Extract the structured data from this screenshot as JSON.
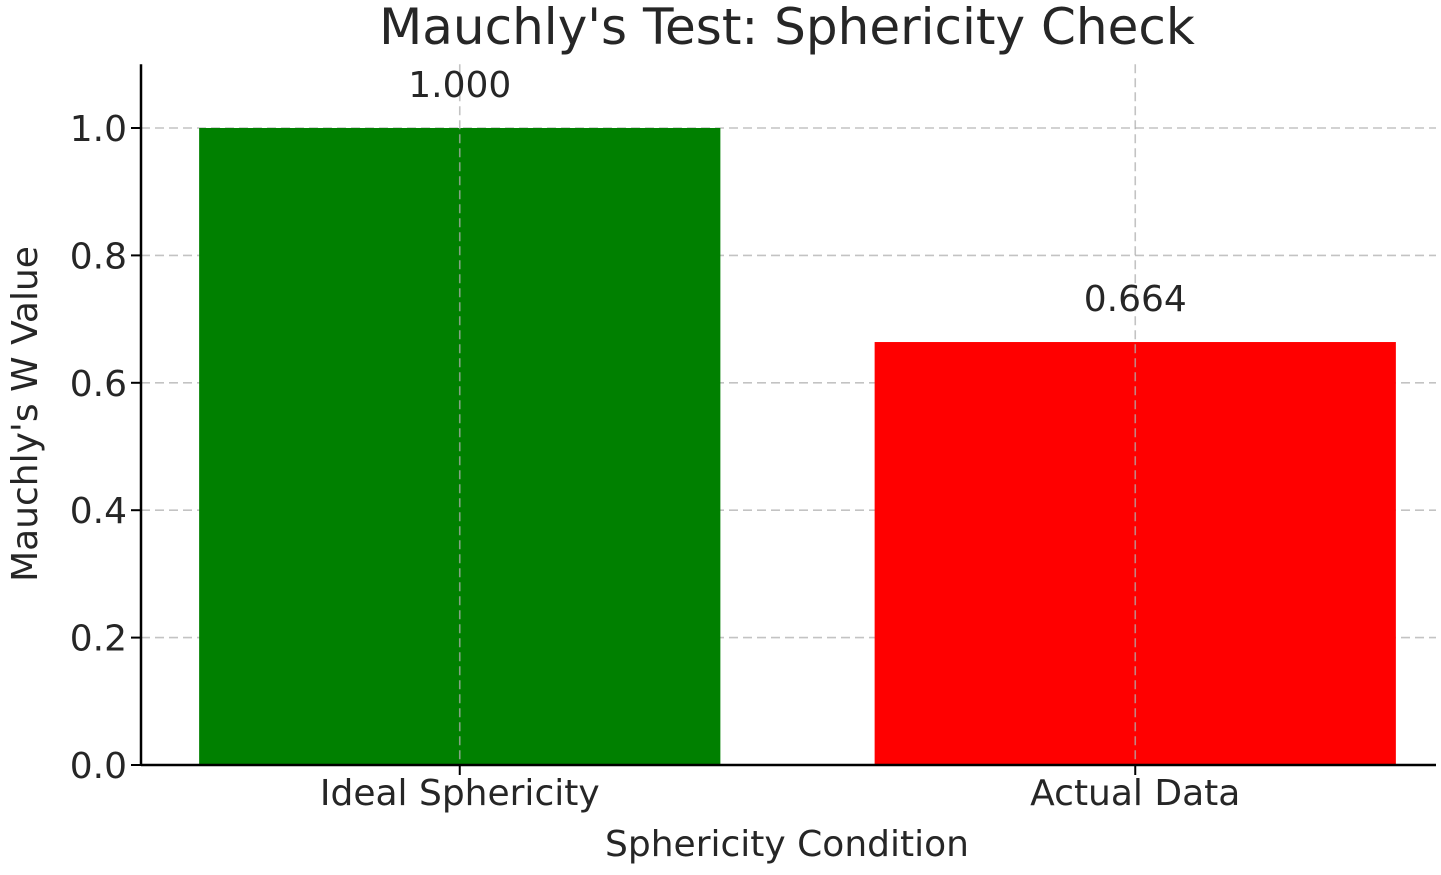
{
  "chart_data": {
    "type": "bar",
    "title": "Mauchly's Test: Sphericity Check",
    "xlabel": "Sphericity Condition",
    "ylabel": "Mauchly's W Value",
    "categories": [
      "Ideal Sphericity",
      "Actual Data"
    ],
    "values": [
      1.0,
      0.664
    ],
    "value_labels": [
      "1.000",
      "0.664"
    ],
    "colors": [
      "#008000",
      "#ff0000"
    ],
    "ylim": [
      0,
      1.1
    ],
    "yticks": [
      0.0,
      0.2,
      0.4,
      0.6,
      0.8,
      1.0
    ],
    "ytick_labels": [
      "0.0",
      "0.2",
      "0.4",
      "0.6",
      "0.8",
      "1.0"
    ],
    "grid": true
  }
}
